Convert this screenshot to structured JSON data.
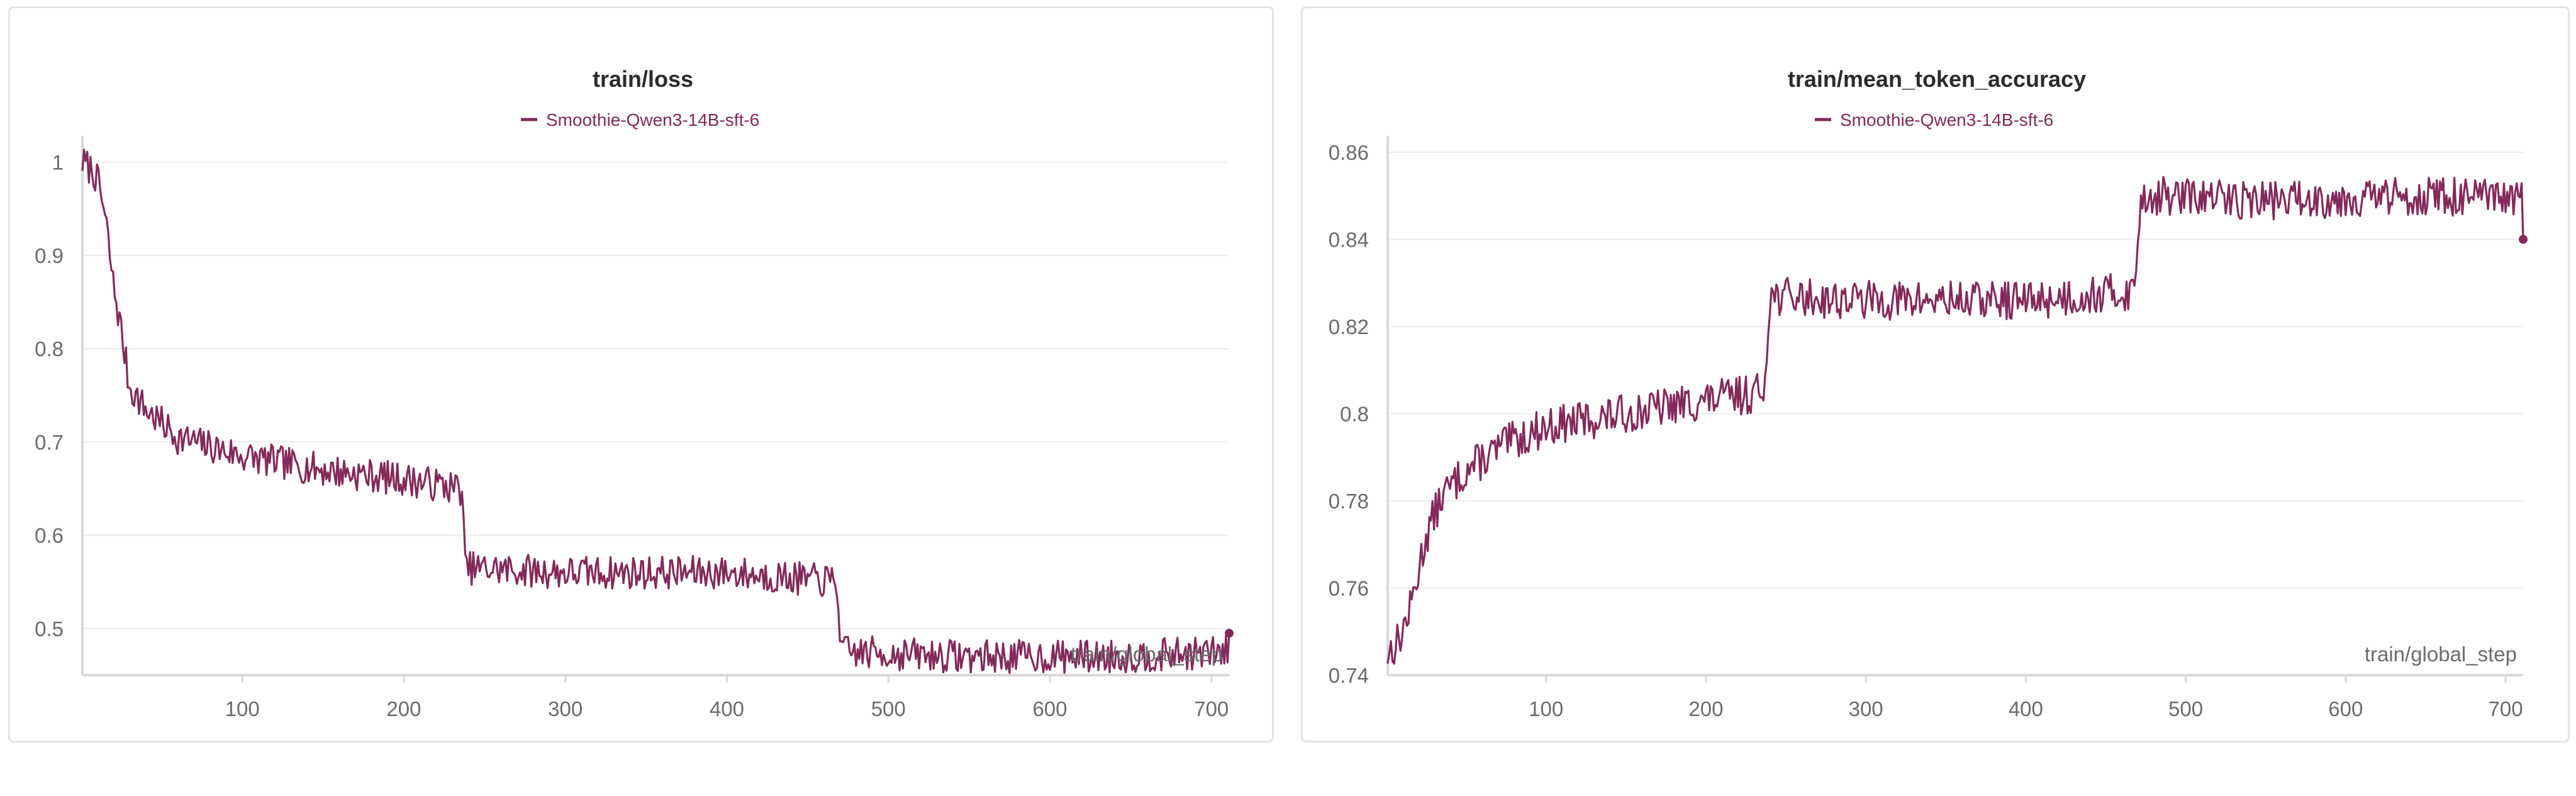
{
  "chart_data": [
    {
      "type": "line",
      "title": "train/loss",
      "xlabel": "train/global_step",
      "ylabel": "",
      "xlim": [
        1,
        711
      ],
      "ylim": [
        0.45,
        1.02
      ],
      "xticks": [
        100,
        200,
        300,
        400,
        500,
        600,
        700
      ],
      "yticks": [
        0.5,
        0.6,
        0.7,
        0.8,
        0.9,
        1
      ],
      "ytick_labels": [
        "0.5",
        "0.6",
        "0.7",
        "0.8",
        "0.9",
        "1"
      ],
      "grid": true,
      "legend_position": "top-center",
      "series": [
        {
          "name": "Smoothie-Qwen3-14B-sft-6",
          "color": "#84295a",
          "profile": [
            [
              1,
              1.0
            ],
            [
              8,
              0.99
            ],
            [
              12,
              0.97
            ],
            [
              16,
              0.93
            ],
            [
              20,
              0.87
            ],
            [
              25,
              0.82
            ],
            [
              30,
              0.76
            ],
            [
              40,
              0.735
            ],
            [
              60,
              0.705
            ],
            [
              100,
              0.685
            ],
            [
              150,
              0.67
            ],
            [
              200,
              0.66
            ],
            [
              236,
              0.65
            ],
            [
              238,
              0.565
            ],
            [
              300,
              0.56
            ],
            [
              400,
              0.56
            ],
            [
              468,
              0.55
            ],
            [
              471,
              0.475
            ],
            [
              550,
              0.47
            ],
            [
              650,
              0.47
            ],
            [
              711,
              0.475
            ]
          ],
          "noise": 0.018,
          "last_value": 0.495,
          "end_marker": true
        }
      ]
    },
    {
      "type": "line",
      "title": "train/mean_token_accuracy",
      "xlabel": "train/global_step",
      "ylabel": "",
      "xlim": [
        1,
        711
      ],
      "ylim": [
        0.74,
        0.862
      ],
      "xticks": [
        100,
        200,
        300,
        400,
        500,
        600,
        700
      ],
      "yticks": [
        0.74,
        0.76,
        0.78,
        0.8,
        0.82,
        0.84,
        0.86
      ],
      "ytick_labels": [
        "0.74",
        "0.76",
        "0.78",
        "0.8",
        "0.82",
        "0.84",
        "0.86"
      ],
      "grid": true,
      "legend_position": "top-center",
      "series": [
        {
          "name": "Smoothie-Qwen3-14B-sft-6",
          "color": "#84295a",
          "profile": [
            [
              1,
              0.745
            ],
            [
              8,
              0.748
            ],
            [
              15,
              0.755
            ],
            [
              25,
              0.772
            ],
            [
              35,
              0.781
            ],
            [
              50,
              0.787
            ],
            [
              75,
              0.793
            ],
            [
              100,
              0.797
            ],
            [
              150,
              0.8
            ],
            [
              200,
              0.803
            ],
            [
              236,
              0.805
            ],
            [
              240,
              0.827
            ],
            [
              300,
              0.826
            ],
            [
              400,
              0.826
            ],
            [
              468,
              0.828
            ],
            [
              472,
              0.85
            ],
            [
              550,
              0.849
            ],
            [
              650,
              0.85
            ],
            [
              711,
              0.849
            ]
          ],
          "noise": 0.0045,
          "last_value": 0.84,
          "end_marker": true
        }
      ]
    }
  ]
}
